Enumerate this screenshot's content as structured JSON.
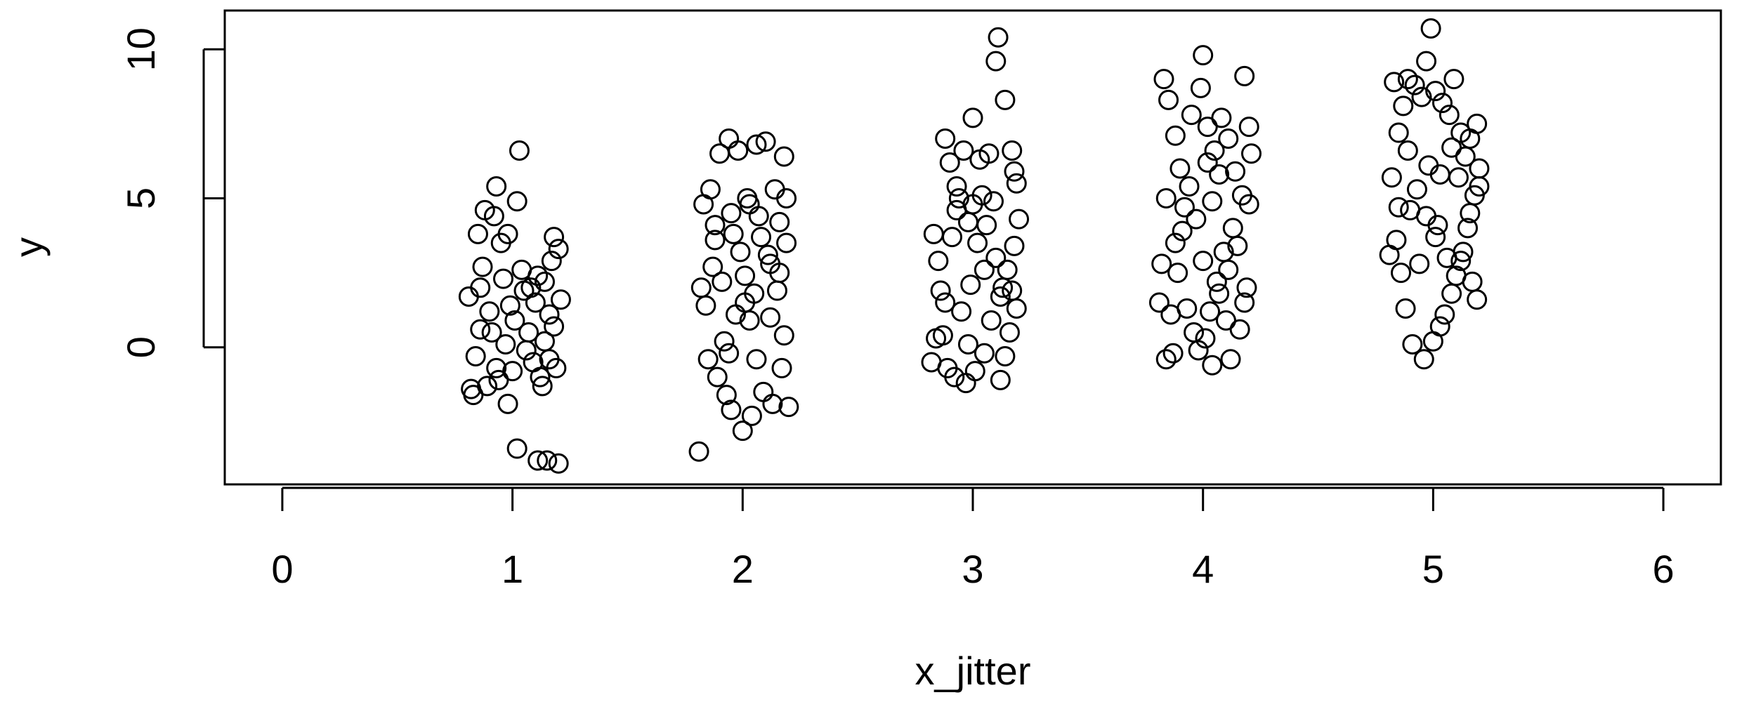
{
  "chart_data": {
    "type": "scatter",
    "title": "",
    "xlabel": "x_jitter",
    "ylabel": "y",
    "xlim": [
      -0.25,
      6.25
    ],
    "ylim": [
      -4.6,
      11.3
    ],
    "x_ticks": [
      0,
      1,
      2,
      3,
      4,
      5,
      6
    ],
    "y_ticks": [
      0,
      5,
      10
    ],
    "grid": false,
    "legend": "none",
    "marker": "open-circle",
    "points": [
      [
        0.82,
        -1.4
      ],
      [
        0.85,
        3.8
      ],
      [
        0.88,
        4.6
      ],
      [
        0.92,
        4.4
      ],
      [
        0.95,
        3.5
      ],
      [
        0.98,
        3.8
      ],
      [
        1.03,
        6.6
      ],
      [
        1.02,
        4.9
      ],
      [
        0.93,
        5.4
      ],
      [
        1.05,
        1.9
      ],
      [
        1.07,
        0.5
      ],
      [
        1.1,
        1.5
      ],
      [
        1.14,
        0.2
      ],
      [
        1.18,
        3.7
      ],
      [
        1.2,
        3.3
      ],
      [
        1.17,
        2.9
      ],
      [
        1.12,
        -1.0
      ],
      [
        1.16,
        1.1
      ],
      [
        1.19,
        -0.7
      ],
      [
        1.13,
        -1.3
      ],
      [
        0.84,
        -0.3
      ],
      [
        0.86,
        0.6
      ],
      [
        0.9,
        1.2
      ],
      [
        0.96,
        2.3
      ],
      [
        1.0,
        -0.8
      ],
      [
        0.98,
        -1.9
      ],
      [
        1.02,
        -3.4
      ],
      [
        1.11,
        -3.8
      ],
      [
        1.15,
        -3.8
      ],
      [
        1.2,
        -3.9
      ],
      [
        0.87,
        2.7
      ],
      [
        0.94,
        -1.1
      ],
      [
        1.01,
        0.9
      ],
      [
        1.08,
        2.0
      ],
      [
        1.09,
        -0.5
      ],
      [
        0.81,
        1.7
      ],
      [
        0.83,
        -1.6
      ],
      [
        0.89,
        -1.3
      ],
      [
        0.97,
        0.1
      ],
      [
        1.04,
        2.6
      ],
      [
        1.06,
        -0.1
      ],
      [
        1.11,
        2.4
      ],
      [
        1.18,
        0.7
      ],
      [
        1.21,
        1.6
      ],
      [
        0.91,
        0.5
      ],
      [
        0.99,
        1.4
      ],
      [
        1.14,
        2.2
      ],
      [
        1.16,
        -0.4
      ],
      [
        0.86,
        2.0
      ],
      [
        0.93,
        -0.7
      ],
      [
        1.81,
        -3.5
      ],
      [
        1.83,
        4.8
      ],
      [
        1.86,
        5.3
      ],
      [
        1.88,
        4.1
      ],
      [
        1.9,
        6.5
      ],
      [
        1.94,
        7.0
      ],
      [
        1.96,
        3.8
      ],
      [
        1.98,
        6.6
      ],
      [
        2.03,
        4.8
      ],
      [
        2.06,
        6.8
      ],
      [
        2.1,
        6.9
      ],
      [
        2.14,
        5.3
      ],
      [
        2.18,
        6.4
      ],
      [
        2.19,
        5.0
      ],
      [
        2.16,
        4.2
      ],
      [
        2.12,
        2.8
      ],
      [
        2.08,
        3.7
      ],
      [
        2.05,
        1.8
      ],
      [
        2.01,
        2.4
      ],
      [
        1.97,
        1.1
      ],
      [
        1.92,
        0.2
      ],
      [
        1.85,
        -0.4
      ],
      [
        1.84,
        1.4
      ],
      [
        1.89,
        -1.0
      ],
      [
        1.93,
        -1.6
      ],
      [
        1.95,
        -2.1
      ],
      [
        2.0,
        -2.8
      ],
      [
        2.04,
        -2.3
      ],
      [
        2.09,
        -1.5
      ],
      [
        2.13,
        -1.9
      ],
      [
        2.17,
        -0.7
      ],
      [
        2.2,
        -2.0
      ],
      [
        2.18,
        0.4
      ],
      [
        2.15,
        1.9
      ],
      [
        2.11,
        3.1
      ],
      [
        2.07,
        4.4
      ],
      [
        2.02,
        5.0
      ],
      [
        1.99,
        3.2
      ],
      [
        1.91,
        2.2
      ],
      [
        1.87,
        2.7
      ],
      [
        1.82,
        2.0
      ],
      [
        1.95,
        4.5
      ],
      [
        2.03,
        0.9
      ],
      [
        2.19,
        3.5
      ],
      [
        2.06,
        -0.4
      ],
      [
        1.88,
        3.6
      ],
      [
        1.94,
        -0.2
      ],
      [
        2.12,
        1.0
      ],
      [
        2.16,
        2.5
      ],
      [
        2.01,
        1.5
      ],
      [
        2.82,
        -0.5
      ],
      [
        2.84,
        0.3
      ],
      [
        2.86,
        1.9
      ],
      [
        2.88,
        7.0
      ],
      [
        2.9,
        6.2
      ],
      [
        2.93,
        5.4
      ],
      [
        2.96,
        6.6
      ],
      [
        2.98,
        4.2
      ],
      [
        3.0,
        7.7
      ],
      [
        3.03,
        6.3
      ],
      [
        3.07,
        6.5
      ],
      [
        3.09,
        4.9
      ],
      [
        3.11,
        10.4
      ],
      [
        3.1,
        9.6
      ],
      [
        3.14,
        8.3
      ],
      [
        3.17,
        6.6
      ],
      [
        3.19,
        5.5
      ],
      [
        3.2,
        4.3
      ],
      [
        3.18,
        3.4
      ],
      [
        3.15,
        2.6
      ],
      [
        3.12,
        1.7
      ],
      [
        3.08,
        0.9
      ],
      [
        3.05,
        -0.2
      ],
      [
        3.01,
        -0.8
      ],
      [
        2.97,
        -1.2
      ],
      [
        2.92,
        -1.0
      ],
      [
        2.89,
        -0.7
      ],
      [
        2.87,
        0.4
      ],
      [
        2.85,
        2.9
      ],
      [
        2.91,
        3.7
      ],
      [
        2.95,
        1.2
      ],
      [
        2.99,
        2.1
      ],
      [
        3.02,
        3.5
      ],
      [
        3.06,
        4.1
      ],
      [
        3.13,
        2.0
      ],
      [
        3.16,
        0.5
      ],
      [
        3.19,
        1.3
      ],
      [
        3.04,
        5.1
      ],
      [
        2.94,
        5.0
      ],
      [
        2.83,
        3.8
      ],
      [
        3.12,
        -1.1
      ],
      [
        3.14,
        -0.3
      ],
      [
        3.17,
        1.9
      ],
      [
        3.1,
        3.0
      ],
      [
        2.98,
        0.1
      ],
      [
        2.93,
        4.6
      ],
      [
        3.05,
        2.6
      ],
      [
        2.88,
        1.5
      ],
      [
        3.0,
        4.8
      ],
      [
        3.18,
        5.9
      ],
      [
        3.81,
        1.5
      ],
      [
        3.83,
        9.0
      ],
      [
        3.85,
        8.3
      ],
      [
        3.88,
        7.1
      ],
      [
        3.9,
        6.0
      ],
      [
        3.92,
        4.7
      ],
      [
        3.95,
        7.8
      ],
      [
        3.99,
        8.7
      ],
      [
        4.0,
        9.8
      ],
      [
        4.02,
        7.4
      ],
      [
        4.05,
        6.6
      ],
      [
        4.08,
        7.7
      ],
      [
        4.11,
        7.0
      ],
      [
        4.14,
        5.9
      ],
      [
        4.18,
        9.1
      ],
      [
        4.2,
        7.4
      ],
      [
        4.21,
        6.5
      ],
      [
        4.17,
        5.1
      ],
      [
        4.13,
        4.0
      ],
      [
        4.09,
        3.2
      ],
      [
        4.06,
        2.2
      ],
      [
        4.03,
        1.2
      ],
      [
        4.01,
        0.3
      ],
      [
        3.98,
        -0.1
      ],
      [
        3.96,
        0.5
      ],
      [
        4.04,
        -0.6
      ],
      [
        4.07,
        1.8
      ],
      [
        4.1,
        0.9
      ],
      [
        4.12,
        -0.4
      ],
      [
        4.16,
        0.6
      ],
      [
        4.19,
        2.0
      ],
      [
        3.87,
        -0.2
      ],
      [
        3.84,
        -0.4
      ],
      [
        3.86,
        1.1
      ],
      [
        3.89,
        2.5
      ],
      [
        3.91,
        3.9
      ],
      [
        3.94,
        5.4
      ],
      [
        3.97,
        4.3
      ],
      [
        4.0,
        2.9
      ],
      [
        4.15,
        3.4
      ],
      [
        3.82,
        2.8
      ],
      [
        4.04,
        4.9
      ],
      [
        4.18,
        1.5
      ],
      [
        3.93,
        1.3
      ],
      [
        4.07,
        5.8
      ],
      [
        3.88,
        3.5
      ],
      [
        4.11,
        2.6
      ],
      [
        4.02,
        6.2
      ],
      [
        4.2,
        4.8
      ],
      [
        3.84,
        5.0
      ],
      [
        4.81,
        3.1
      ],
      [
        4.83,
        8.9
      ],
      [
        4.85,
        7.2
      ],
      [
        4.87,
        8.1
      ],
      [
        4.89,
        9.0
      ],
      [
        4.92,
        8.8
      ],
      [
        4.95,
        8.4
      ],
      [
        4.97,
        9.6
      ],
      [
        4.99,
        10.7
      ],
      [
        5.01,
        8.6
      ],
      [
        5.04,
        8.2
      ],
      [
        5.07,
        7.8
      ],
      [
        5.09,
        9.0
      ],
      [
        5.12,
        7.2
      ],
      [
        5.16,
        7.0
      ],
      [
        5.19,
        7.5
      ],
      [
        5.2,
        6.0
      ],
      [
        5.18,
        5.1
      ],
      [
        5.15,
        4.0
      ],
      [
        5.13,
        3.2
      ],
      [
        5.1,
        2.4
      ],
      [
        5.08,
        1.8
      ],
      [
        5.05,
        1.1
      ],
      [
        5.03,
        0.7
      ],
      [
        5.0,
        0.2
      ],
      [
        4.96,
        -0.4
      ],
      [
        4.91,
        0.1
      ],
      [
        4.88,
        1.3
      ],
      [
        4.86,
        2.5
      ],
      [
        4.84,
        3.6
      ],
      [
        4.9,
        4.6
      ],
      [
        4.93,
        5.3
      ],
      [
        4.98,
        6.1
      ],
      [
        5.02,
        4.1
      ],
      [
        5.06,
        3.0
      ],
      [
        5.11,
        5.7
      ],
      [
        5.14,
        6.4
      ],
      [
        5.17,
        2.2
      ],
      [
        5.19,
        1.6
      ],
      [
        4.94,
        2.8
      ],
      [
        4.82,
        5.7
      ],
      [
        4.85,
        4.7
      ],
      [
        5.01,
        3.7
      ],
      [
        5.08,
        6.7
      ],
      [
        5.16,
        4.5
      ],
      [
        4.89,
        6.6
      ],
      [
        4.97,
        4.4
      ],
      [
        5.12,
        2.9
      ],
      [
        5.2,
        5.4
      ],
      [
        5.03,
        5.8
      ]
    ]
  }
}
